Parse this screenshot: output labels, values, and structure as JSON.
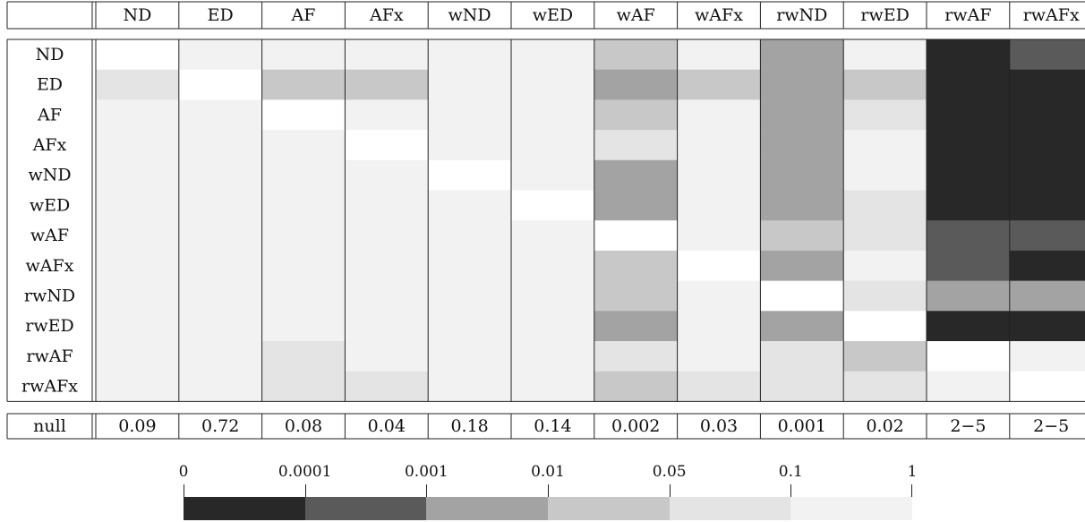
{
  "chart_data": {
    "type": "heatmap",
    "columns": [
      "ND",
      "ED",
      "AF",
      "AFx",
      "wND",
      "wED",
      "wAF",
      "wAFx",
      "rwND",
      "rwED",
      "rwAF",
      "rwAFx"
    ],
    "rows": [
      "ND",
      "ED",
      "AF",
      "AFx",
      "wND",
      "wED",
      "wAF",
      "wAFx",
      "rwND",
      "rwED",
      "rwAF",
      "rwAFx"
    ],
    "null_row_label": "null",
    "null_values": [
      "0.09",
      "0.72",
      "0.08",
      "0.04",
      "0.18",
      "0.14",
      "0.002",
      "0.03",
      "0.001",
      "0.02",
      "2−5",
      "2−5"
    ],
    "levels_note": "cell value = colour bin index: 0 = [0,0.0001), 1 = [0.0001,0.001), 2 = [0.001,0.01), 3 = [0.01,0.05), 4 = [0.05,0.1), 5 = [0.1,1], 6 = diagonal",
    "cells": [
      [
        6,
        5,
        5,
        5,
        5,
        5,
        3,
        5,
        2,
        5,
        0,
        1
      ],
      [
        4,
        6,
        3,
        3,
        5,
        5,
        2,
        3,
        2,
        3,
        0,
        0
      ],
      [
        5,
        5,
        6,
        5,
        5,
        5,
        3,
        5,
        2,
        4,
        0,
        0
      ],
      [
        5,
        5,
        5,
        6,
        5,
        5,
        4,
        5,
        2,
        5,
        0,
        0
      ],
      [
        5,
        5,
        5,
        5,
        6,
        5,
        2,
        5,
        2,
        5,
        0,
        0
      ],
      [
        5,
        5,
        5,
        5,
        5,
        6,
        2,
        5,
        2,
        4,
        0,
        0
      ],
      [
        5,
        5,
        5,
        5,
        5,
        5,
        6,
        5,
        3,
        4,
        1,
        1
      ],
      [
        5,
        5,
        5,
        5,
        5,
        5,
        3,
        6,
        2,
        5,
        1,
        0
      ],
      [
        5,
        5,
        5,
        5,
        5,
        5,
        3,
        5,
        6,
        4,
        2,
        2
      ],
      [
        5,
        5,
        5,
        5,
        5,
        5,
        2,
        5,
        2,
        6,
        0,
        0
      ],
      [
        5,
        5,
        4,
        5,
        5,
        5,
        4,
        5,
        4,
        3,
        6,
        5
      ],
      [
        5,
        5,
        4,
        4,
        5,
        5,
        3,
        4,
        4,
        4,
        5,
        6
      ]
    ],
    "legend": {
      "ticks": [
        "0",
        "0.0001",
        "0.001",
        "0.01",
        "0.05",
        "0.1",
        "1"
      ],
      "colors": [
        "#282828",
        "#5a5a5a",
        "#a3a3a3",
        "#c8c8c8",
        "#e4e4e4",
        "#f2f2f2"
      ]
    },
    "diagonal_color": "#ffffff"
  }
}
